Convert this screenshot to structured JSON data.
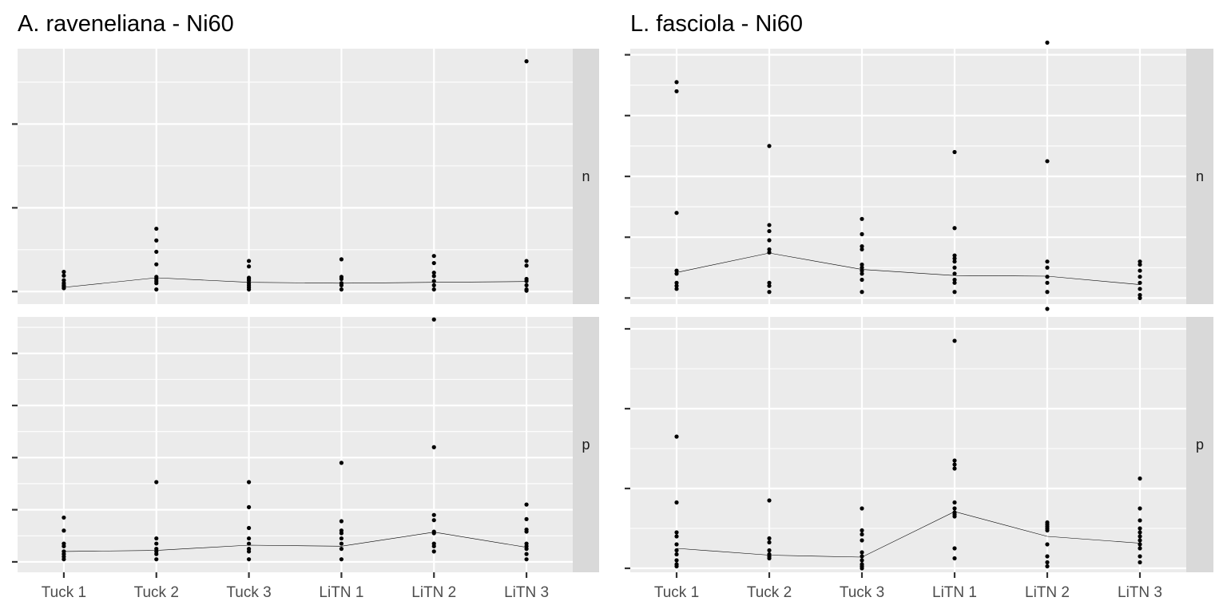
{
  "colors": {
    "panel_bg": "#EBEBEB",
    "grid": "#FFFFFF",
    "strip_bg": "#D9D9D9",
    "point": "#000000",
    "line": "#000000",
    "tick": "#333333"
  },
  "chart_data": [
    {
      "type": "scatter",
      "title": "A. raveneliana - Ni60",
      "categories": [
        "Tuck 1",
        "Tuck 2",
        "Tuck 3",
        "LiTN 1",
        "LiTN 2",
        "LiTN 3"
      ],
      "facets": [
        {
          "label": "n",
          "ylim": [
            -0.3,
            5.8
          ],
          "y_ticks": [
            0,
            2,
            4
          ],
          "points": [
            [
              0.47,
              0.38,
              0.27,
              0.2,
              0.15,
              0.12,
              0.08
            ],
            [
              1.5,
              1.22,
              0.95,
              0.65,
              0.35,
              0.3,
              0.25,
              0.2,
              0.05
            ],
            [
              0.73,
              0.6,
              0.33,
              0.3,
              0.26,
              0.2,
              0.15,
              0.1,
              0.05
            ],
            [
              0.77,
              0.35,
              0.3,
              0.2,
              0.15,
              0.05
            ],
            [
              0.85,
              0.68,
              0.45,
              0.37,
              0.25,
              0.15,
              0.05
            ],
            [
              0.73,
              0.62,
              0.3,
              0.25,
              0.15,
              0.05,
              0.02,
              5.5
            ]
          ],
          "means": [
            0.1,
            0.33,
            0.22,
            0.2,
            0.22,
            0.24
          ]
        },
        {
          "label": "p",
          "ylim": [
            -0.2,
            4.7
          ],
          "y_ticks": [
            0,
            1,
            2,
            3,
            4
          ],
          "points": [
            [
              0.85,
              0.6,
              0.35,
              0.3,
              0.2,
              0.15,
              0.1,
              0.05
            ],
            [
              1.53,
              0.45,
              0.35,
              0.25,
              0.2,
              0.15,
              0.05
            ],
            [
              1.53,
              1.05,
              0.65,
              0.45,
              0.35,
              0.25,
              0.2,
              0.05
            ],
            [
              1.9,
              0.78,
              0.6,
              0.55,
              0.45,
              0.35,
              0.25,
              0.05
            ],
            [
              4.65,
              2.2,
              0.9,
              0.8,
              0.58,
              0.55,
              0.35,
              0.3,
              0.2
            ],
            [
              1.1,
              0.82,
              0.62,
              0.58,
              0.35,
              0.3,
              0.25,
              0.15,
              0.05
            ]
          ],
          "means": [
            0.2,
            0.22,
            0.32,
            0.3,
            0.57,
            0.28
          ]
        }
      ]
    },
    {
      "type": "scatter",
      "title": "L. fasciola - Ni60",
      "categories": [
        "Tuck 1",
        "Tuck 2",
        "Tuck 3",
        "LiTN 1",
        "LiTN 2",
        "LiTN 3"
      ],
      "facets": [
        {
          "label": "n",
          "ylim": [
            -0.1,
            4.1
          ],
          "y_ticks": [
            0,
            1,
            2,
            3,
            4
          ],
          "points": [
            [
              3.55,
              3.4,
              1.4,
              0.45,
              0.4,
              0.25,
              0.2,
              0.15
            ],
            [
              2.5,
              1.2,
              1.1,
              0.95,
              0.8,
              0.75,
              0.25,
              0.2,
              0.1
            ],
            [
              1.3,
              1.05,
              0.85,
              0.8,
              0.55,
              0.5,
              0.45,
              0.4,
              0.3,
              0.1
            ],
            [
              2.4,
              1.15,
              0.7,
              0.65,
              0.6,
              0.5,
              0.4,
              0.3,
              0.25,
              0.1
            ],
            [
              4.2,
              2.25,
              0.6,
              0.5,
              0.35,
              0.25,
              0.1
            ],
            [
              0.6,
              0.55,
              0.45,
              0.35,
              0.25,
              0.15,
              0.05,
              0.0
            ]
          ],
          "means": [
            0.42,
            0.74,
            0.47,
            0.37,
            0.36,
            0.22
          ]
        },
        {
          "label": "p",
          "ylim": [
            -0.1,
            6.3
          ],
          "y_ticks": [
            0,
            2,
            4,
            6
          ],
          "points": [
            [
              3.3,
              1.65,
              0.9,
              0.8,
              0.6,
              0.45,
              0.35,
              0.2,
              0.1,
              0.05
            ],
            [
              1.7,
              0.75,
              0.65,
              0.45,
              0.35,
              0.3,
              0.25
            ],
            [
              1.5,
              0.95,
              0.85,
              0.7,
              0.4,
              0.3,
              0.2,
              0.1,
              0.05,
              0.0
            ],
            [
              5.7,
              2.7,
              2.6,
              2.5,
              1.65,
              1.5,
              1.4,
              1.35,
              1.3,
              0.5,
              0.25
            ],
            [
              6.5,
              1.15,
              1.1,
              1.05,
              1.0,
              0.95,
              0.6,
              0.3,
              0.15,
              0.05
            ],
            [
              2.25,
              1.5,
              1.2,
              1.0,
              0.9,
              0.8,
              0.7,
              0.6,
              0.5,
              0.3,
              0.15
            ]
          ],
          "means": [
            0.5,
            0.33,
            0.28,
            1.42,
            0.8,
            0.63
          ]
        }
      ]
    }
  ]
}
